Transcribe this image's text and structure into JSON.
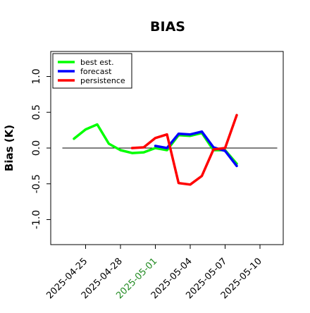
{
  "chart_data": {
    "type": "line",
    "title": "BIAS",
    "xlabel": "",
    "ylabel": "Bias (K)",
    "x_type": "date",
    "xlim": [
      "2025-04-22",
      "2025-05-12"
    ],
    "ylim": [
      -1.35,
      1.35
    ],
    "y_ticks": [
      -1.0,
      -0.5,
      0.0,
      0.5,
      1.0
    ],
    "y_tick_labels": [
      "-1.0",
      "-0.5",
      "0.0",
      "0.5",
      "1.0"
    ],
    "x_ticks": [
      {
        "date": "2025-04-25",
        "label": "2025-04-25",
        "color": "#000000"
      },
      {
        "date": "2025-04-28",
        "label": "2025-04-28",
        "color": "#000000"
      },
      {
        "date": "2025-05-01",
        "label": "2025-05-01",
        "color": "#228b22"
      },
      {
        "date": "2025-05-04",
        "label": "2025-05-04",
        "color": "#000000"
      },
      {
        "date": "2025-05-07",
        "label": "2025-05-07",
        "color": "#000000"
      },
      {
        "date": "2025-05-10",
        "label": "2025-05-10",
        "color": "#000000"
      }
    ],
    "reference_line": {
      "y": 0.0,
      "color": "#000000"
    },
    "legend_position": "top-left",
    "series": [
      {
        "name": "best est.",
        "color": "#00ff00",
        "points": [
          {
            "x": "2025-04-24",
            "y": 0.13
          },
          {
            "x": "2025-04-25",
            "y": 0.26
          },
          {
            "x": "2025-04-26",
            "y": 0.33
          },
          {
            "x": "2025-04-27",
            "y": 0.06
          },
          {
            "x": "2025-04-28",
            "y": -0.03
          },
          {
            "x": "2025-04-29",
            "y": -0.07
          },
          {
            "x": "2025-04-30",
            "y": -0.06
          },
          {
            "x": "2025-05-01",
            "y": 0.0
          },
          {
            "x": "2025-05-02",
            "y": -0.03
          },
          {
            "x": "2025-05-03",
            "y": 0.18
          },
          {
            "x": "2025-05-04",
            "y": 0.17
          },
          {
            "x": "2025-05-05",
            "y": 0.21
          },
          {
            "x": "2025-05-06",
            "y": -0.03
          },
          {
            "x": "2025-05-07",
            "y": -0.03
          },
          {
            "x": "2025-05-08",
            "y": -0.22
          }
        ]
      },
      {
        "name": "forecast",
        "color": "#0000ff",
        "points": [
          {
            "x": "2025-05-01",
            "y": 0.03
          },
          {
            "x": "2025-05-02",
            "y": 0.0
          },
          {
            "x": "2025-05-03",
            "y": 0.2
          },
          {
            "x": "2025-05-04",
            "y": 0.19
          },
          {
            "x": "2025-05-05",
            "y": 0.23
          },
          {
            "x": "2025-05-06",
            "y": 0.01
          },
          {
            "x": "2025-05-07",
            "y": -0.04
          },
          {
            "x": "2025-05-08",
            "y": -0.25
          }
        ]
      },
      {
        "name": "persistence",
        "color": "#ff0000",
        "points": [
          {
            "x": "2025-04-29",
            "y": 0.0
          },
          {
            "x": "2025-04-30",
            "y": 0.01
          },
          {
            "x": "2025-05-01",
            "y": 0.14
          },
          {
            "x": "2025-05-02",
            "y": 0.19
          },
          {
            "x": "2025-05-03",
            "y": -0.49
          },
          {
            "x": "2025-05-04",
            "y": -0.51
          },
          {
            "x": "2025-05-05",
            "y": -0.39
          },
          {
            "x": "2025-05-06",
            "y": -0.02
          },
          {
            "x": "2025-05-07",
            "y": 0.0
          },
          {
            "x": "2025-05-08",
            "y": 0.46
          }
        ]
      }
    ]
  }
}
